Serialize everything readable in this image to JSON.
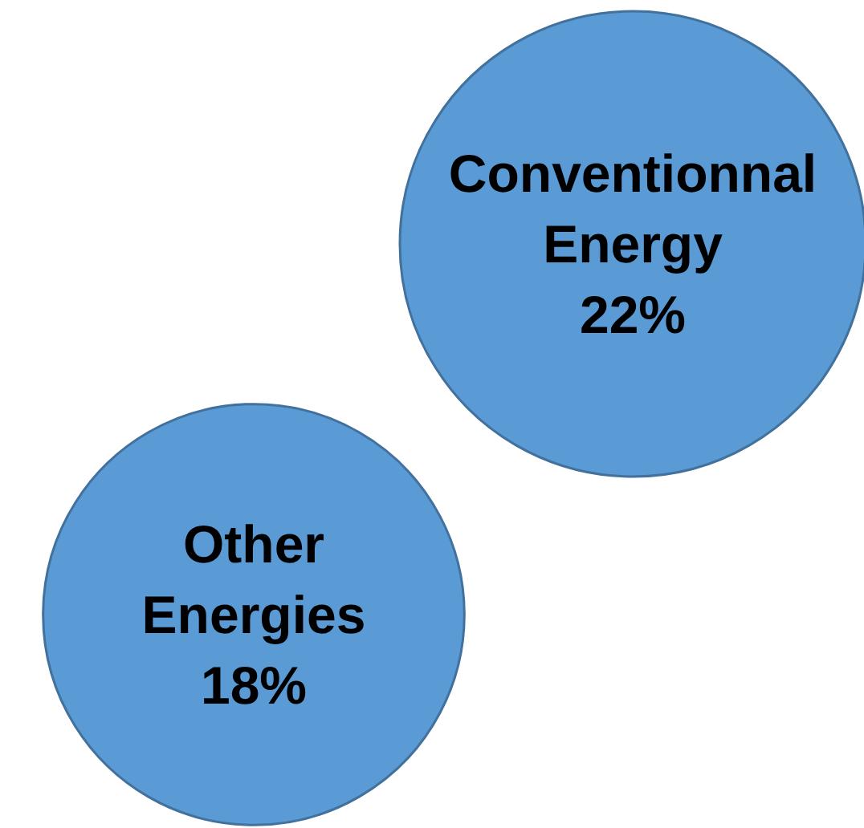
{
  "chart_data": {
    "type": "other",
    "categories": [
      "Conventionnal Energy",
      "Other Energies"
    ],
    "values": [
      22,
      18
    ],
    "value_labels": [
      "22%",
      "18%"
    ],
    "colors": [
      "#5b9bd5",
      "#5b9bd5"
    ]
  }
}
